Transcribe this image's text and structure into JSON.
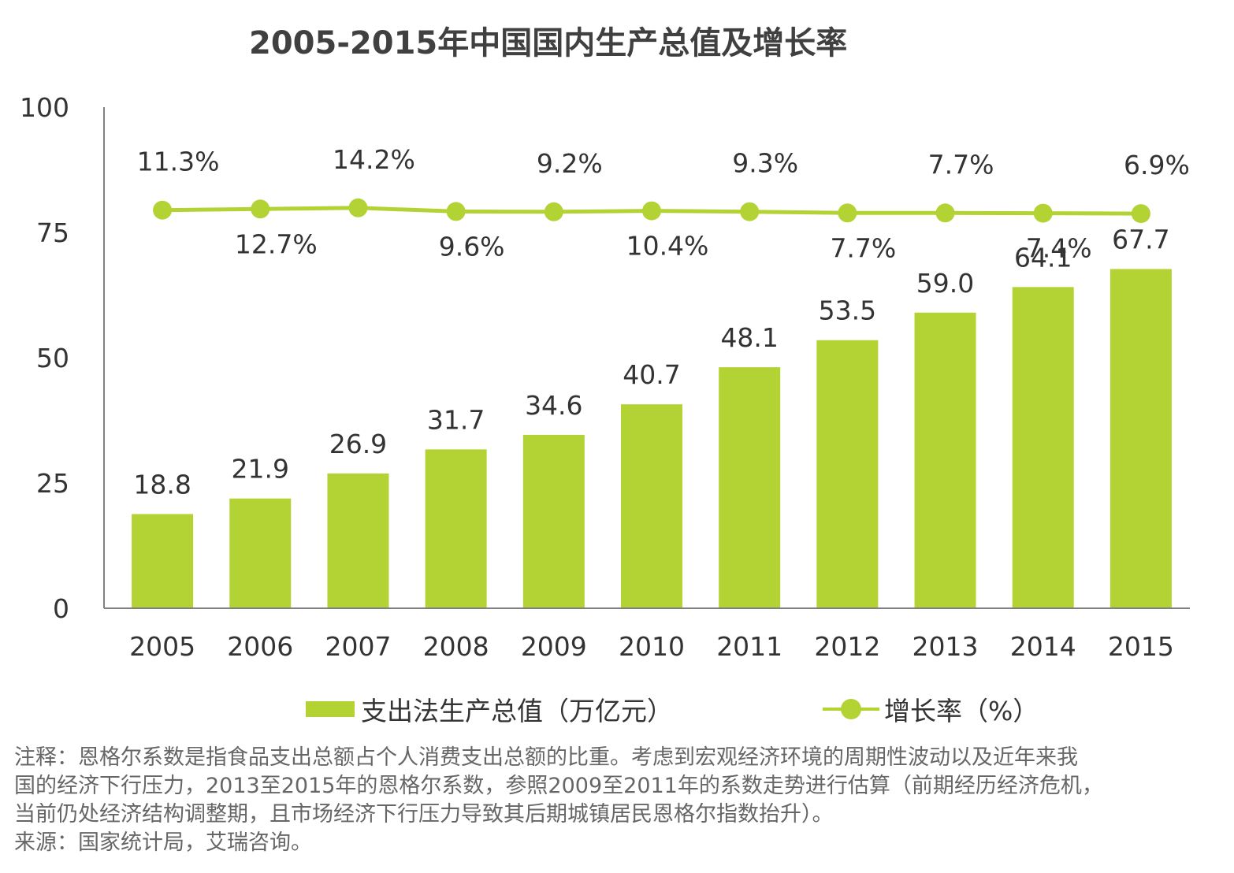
{
  "chart_data": {
    "type": "bar",
    "title": "2005-2015年中国国内生产总值及增长率",
    "categories": [
      "2005",
      "2006",
      "2007",
      "2008",
      "2009",
      "2010",
      "2011",
      "2012",
      "2013",
      "2014",
      "2015"
    ],
    "series": [
      {
        "name": "支出法生产总值（万亿元）",
        "type": "bar",
        "values": [
          18.8,
          21.9,
          26.9,
          31.7,
          34.6,
          40.7,
          48.1,
          53.5,
          59.0,
          64.1,
          67.7
        ],
        "labels": [
          "18.8",
          "21.9",
          "26.9",
          "31.7",
          "34.6",
          "40.7",
          "48.1",
          "53.5",
          "59.0",
          "64.1",
          "67.7"
        ]
      },
      {
        "name": "增长率（%）",
        "type": "line",
        "values": [
          11.3,
          12.7,
          14.2,
          9.6,
          9.2,
          10.4,
          9.3,
          7.7,
          7.7,
          7.4,
          6.9
        ],
        "labels": [
          "11.3%",
          "12.7%",
          "14.2%",
          "9.6%",
          "9.2%",
          "10.4%",
          "9.3%",
          "7.7%",
          "7.7%",
          "7.4%",
          "6.9%"
        ]
      }
    ],
    "y_ticks": [
      "0",
      "25",
      "50",
      "75",
      "100"
    ],
    "ylim": [
      0,
      100
    ],
    "xlabel": "",
    "ylabel": "",
    "grid": false,
    "legend_position": "bottom",
    "colors": {
      "bar": "#b3d335",
      "line": "#b3d335",
      "axis": "#808080"
    }
  },
  "notes": [
    "注释：恩格尔系数是指食品支出总额占个人消费支出总额的比重。考虑到宏观经济环境的周期性波动以及近年来我",
    "国的经济下行压力，2013至2015年的恩格尔系数，参照2009至2011年的系数走势进行估算（前期经历经济危机，",
    "当前仍处经济结构调整期，且市场经济下行压力导致其后期城镇居民恩格尔指数抬升）。",
    "来源：国家统计局，艾瑞咨询。"
  ]
}
